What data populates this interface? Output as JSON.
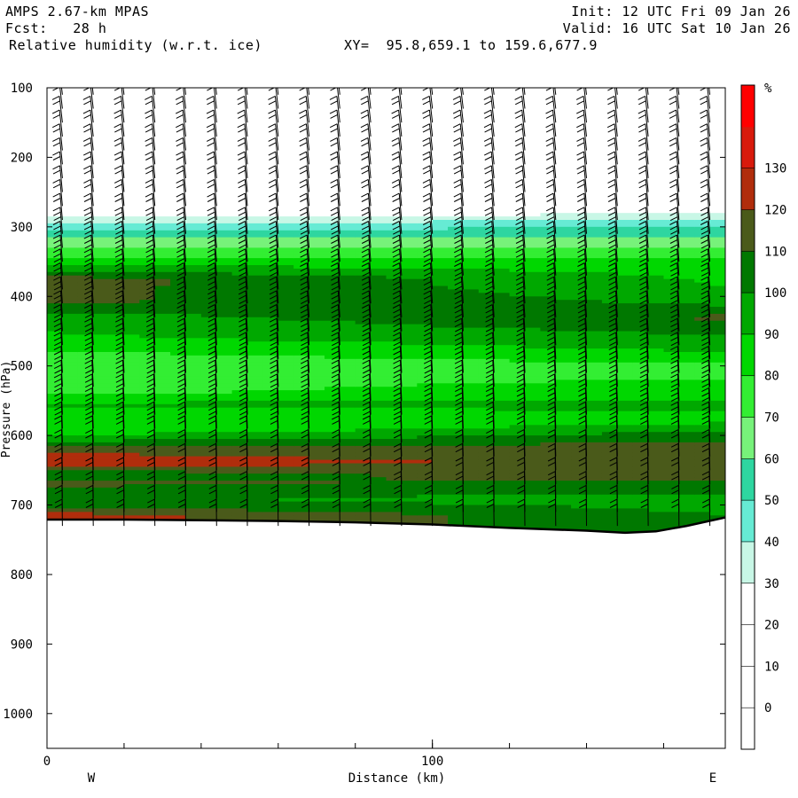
{
  "header": {
    "model": "AMPS 2.67-km MPAS",
    "fcst": "Fcst:   28 h",
    "field": "Relative humidity (w.r.t. ice)",
    "xy": "XY=  95.8,659.1 to 159.6,677.9",
    "init": "Init: 12 UTC Fri 09 Jan 26",
    "valid": "Valid: 16 UTC Sat 10 Jan 26"
  },
  "chart_data": {
    "type": "heatmap",
    "title": "Relative humidity (w.r.t. ice)",
    "xlabel": "Distance (km)",
    "ylabel": "Pressure (hPa)",
    "xlim": [
      0,
      176
    ],
    "ylim": [
      1050,
      100
    ],
    "x_ticks": [
      0,
      100
    ],
    "y_ticks": [
      100,
      200,
      300,
      400,
      500,
      600,
      700,
      800,
      900,
      1000
    ],
    "x_end_labels": [
      "W",
      "E"
    ],
    "colorbar": {
      "unit": "%",
      "levels": [
        -10,
        0,
        10,
        20,
        30,
        40,
        50,
        60,
        70,
        80,
        90,
        100,
        110,
        120,
        130,
        140
      ],
      "tick_labels": [
        "0",
        "10",
        "20",
        "30",
        "40",
        "50",
        "60",
        "70",
        "80",
        "90",
        "100",
        "110",
        "120",
        "130"
      ],
      "colors": [
        "#ffffff",
        "#ffffff",
        "#ffffff",
        "#ffffff",
        "#c8f7e6",
        "#66ebd4",
        "#2ed6a0",
        "#77f27a",
        "#33ee33",
        "#00d700",
        "#00a800",
        "#007800",
        "#4a5a1a",
        "#b02d0c",
        "#d81a0c",
        "#ff0000"
      ]
    },
    "surface_pressure": [
      [
        0,
        721
      ],
      [
        20,
        721
      ],
      [
        40,
        722
      ],
      [
        60,
        723
      ],
      [
        80,
        725
      ],
      [
        100,
        728
      ],
      [
        120,
        733
      ],
      [
        140,
        737
      ],
      [
        150,
        740
      ],
      [
        158,
        738
      ],
      [
        166,
        730
      ],
      [
        176,
        718
      ]
    ],
    "rh_profile_west": [
      [
        100,
        10
      ],
      [
        280,
        20
      ],
      [
        295,
        40
      ],
      [
        310,
        55
      ],
      [
        325,
        65
      ],
      [
        345,
        80
      ],
      [
        360,
        95
      ],
      [
        375,
        115
      ],
      [
        410,
        112
      ],
      [
        430,
        95
      ],
      [
        460,
        88
      ],
      [
        490,
        75
      ],
      [
        515,
        72
      ],
      [
        540,
        78
      ],
      [
        555,
        92
      ],
      [
        570,
        85
      ],
      [
        590,
        80
      ],
      [
        605,
        95
      ],
      [
        620,
        118
      ],
      [
        640,
        125
      ],
      [
        655,
        105
      ],
      [
        670,
        112
      ],
      [
        690,
        100
      ],
      [
        705,
        112
      ],
      [
        715,
        125
      ]
    ],
    "rh_profile_east": [
      [
        100,
        10
      ],
      [
        270,
        20
      ],
      [
        285,
        35
      ],
      [
        300,
        50
      ],
      [
        315,
        60
      ],
      [
        335,
        75
      ],
      [
        355,
        85
      ],
      [
        385,
        90
      ],
      [
        410,
        98
      ],
      [
        430,
        112
      ],
      [
        455,
        100
      ],
      [
        480,
        90
      ],
      [
        505,
        75
      ],
      [
        530,
        85
      ],
      [
        555,
        92
      ],
      [
        580,
        88
      ],
      [
        600,
        105
      ],
      [
        620,
        115
      ],
      [
        650,
        118
      ],
      [
        675,
        105
      ],
      [
        695,
        95
      ],
      [
        715,
        100
      ]
    ],
    "wind_barb_columns": 22
  }
}
